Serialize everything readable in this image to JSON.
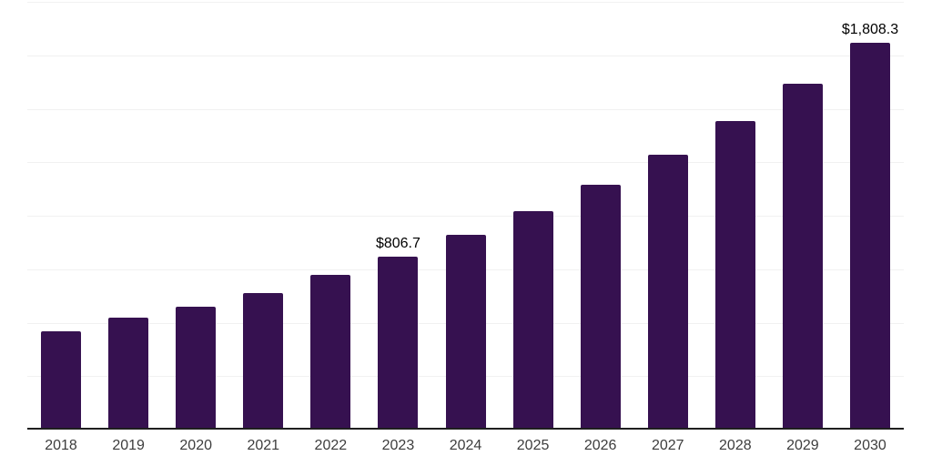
{
  "chart_data": {
    "type": "bar",
    "title": "",
    "xlabel": "",
    "ylabel": "",
    "categories": [
      "2018",
      "2019",
      "2020",
      "2021",
      "2022",
      "2023",
      "2024",
      "2025",
      "2026",
      "2027",
      "2028",
      "2029",
      "2030"
    ],
    "values": [
      460.0,
      522.0,
      576.5,
      639.5,
      723.5,
      806.7,
      910.0,
      1020.0,
      1144.0,
      1284.0,
      1441.0,
      1615.0,
      1808.3
    ],
    "data_labels": [
      "",
      "",
      "",
      "",
      "",
      "$806.7",
      "",
      "",
      "",
      "",
      "",
      "",
      "$1,808.3"
    ],
    "ylim": [
      0,
      2000
    ],
    "gridline_interval": 250,
    "grid": true,
    "y_tick_labels_shown": false,
    "legend": false
  },
  "style": {
    "bar_color": "#361150",
    "axis_color": "#1f1f1f",
    "gridline_color": "#f1f1f1",
    "value_label_color": "#000000",
    "tick_label_color": "#3d3d3d",
    "background_color": "#ffffff"
  }
}
